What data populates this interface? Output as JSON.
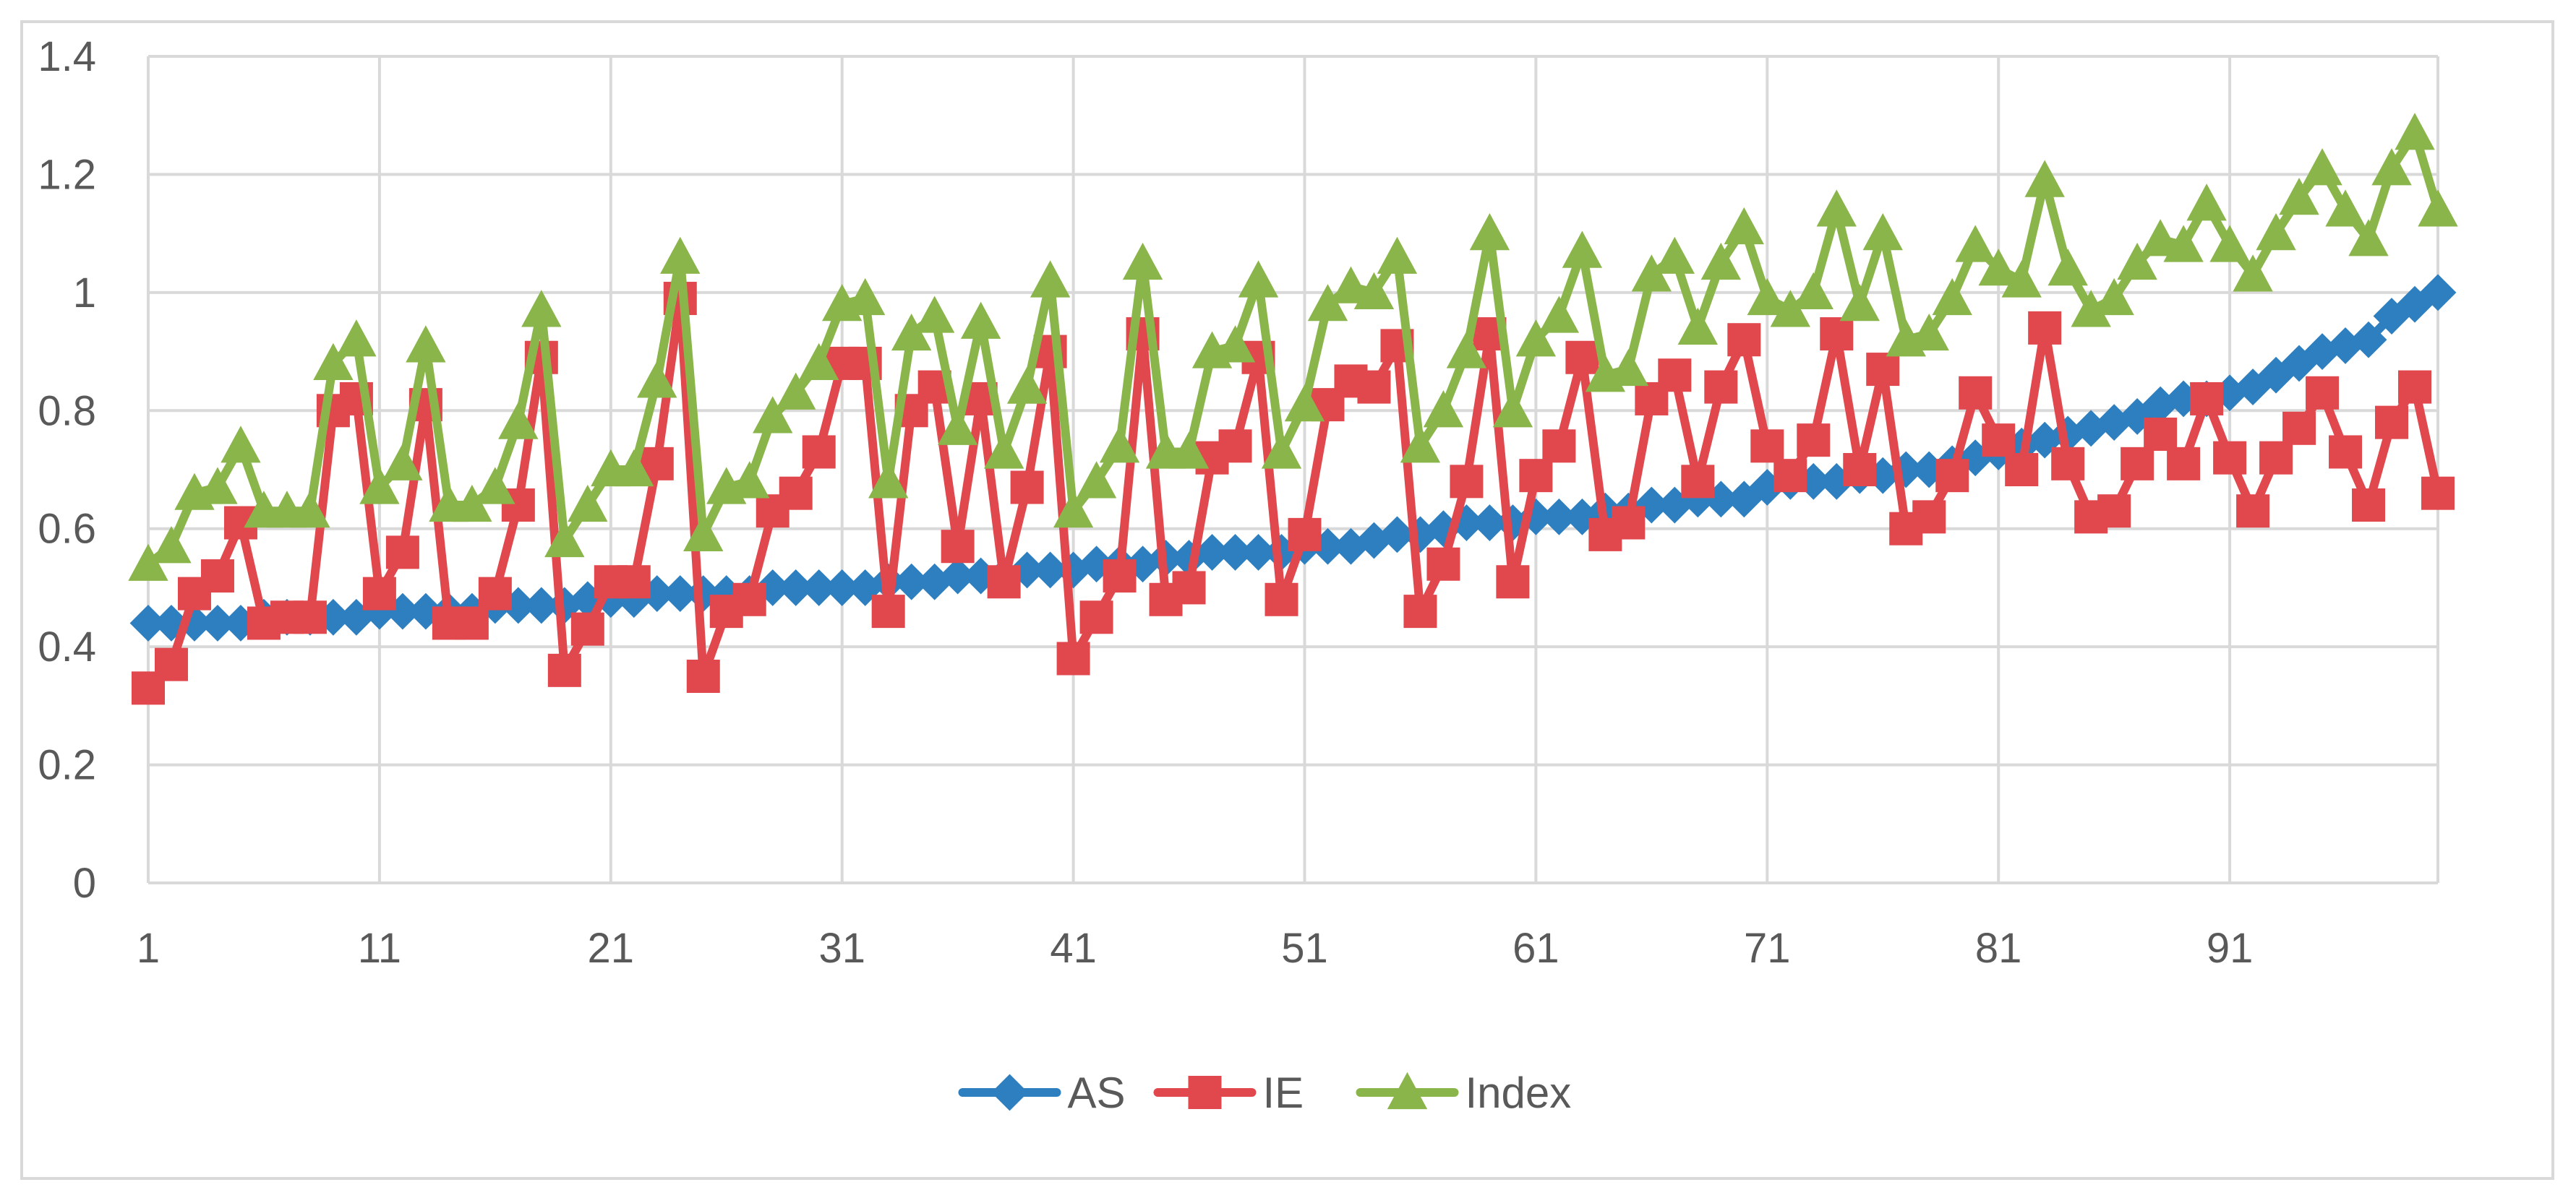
{
  "chart_data": {
    "type": "line",
    "title": "",
    "xlabel": "",
    "ylabel": "",
    "x": [
      1,
      2,
      3,
      4,
      5,
      6,
      7,
      8,
      9,
      10,
      11,
      12,
      13,
      14,
      15,
      16,
      17,
      18,
      19,
      20,
      21,
      22,
      23,
      24,
      25,
      26,
      27,
      28,
      29,
      30,
      31,
      32,
      33,
      34,
      35,
      36,
      37,
      38,
      39,
      40,
      41,
      42,
      43,
      44,
      45,
      46,
      47,
      48,
      49,
      50,
      51,
      52,
      53,
      54,
      55,
      56,
      57,
      58,
      59,
      60,
      61,
      62,
      63,
      64,
      65,
      66,
      67,
      68,
      69,
      70,
      71,
      72,
      73,
      74,
      75,
      76,
      77,
      78,
      79,
      80,
      81,
      82,
      83,
      84,
      85,
      86,
      87,
      88,
      89,
      90,
      91,
      92,
      93,
      94,
      95,
      96,
      97,
      98,
      99,
      100
    ],
    "xtick_labels": [
      "1",
      "11",
      "21",
      "31",
      "41",
      "51",
      "61",
      "71",
      "81",
      "91"
    ],
    "xtick_values": [
      1,
      11,
      21,
      31,
      41,
      51,
      61,
      71,
      81,
      91
    ],
    "ylim": [
      0,
      1.4
    ],
    "ytick_labels": [
      "0",
      "0.2",
      "0.4",
      "0.6",
      "0.8",
      "1",
      "1.2",
      "1.4"
    ],
    "ytick_values": [
      0,
      0.2,
      0.4,
      0.6,
      0.8,
      1,
      1.2,
      1.4
    ],
    "grid": true,
    "legend_position": "bottom",
    "series": [
      {
        "name": "AS",
        "color": "#2e7fbf",
        "marker": "diamond",
        "values": [
          0.44,
          0.44,
          0.44,
          0.44,
          0.44,
          0.45,
          0.45,
          0.45,
          0.45,
          0.45,
          0.46,
          0.46,
          0.46,
          0.46,
          0.46,
          0.47,
          0.47,
          0.47,
          0.47,
          0.48,
          0.48,
          0.48,
          0.49,
          0.49,
          0.49,
          0.49,
          0.49,
          0.5,
          0.5,
          0.5,
          0.5,
          0.5,
          0.51,
          0.51,
          0.51,
          0.52,
          0.52,
          0.52,
          0.53,
          0.53,
          0.53,
          0.54,
          0.54,
          0.54,
          0.55,
          0.55,
          0.56,
          0.56,
          0.56,
          0.56,
          0.57,
          0.57,
          0.57,
          0.58,
          0.59,
          0.59,
          0.6,
          0.61,
          0.61,
          0.61,
          0.62,
          0.62,
          0.62,
          0.63,
          0.63,
          0.64,
          0.64,
          0.65,
          0.65,
          0.65,
          0.67,
          0.68,
          0.68,
          0.68,
          0.69,
          0.69,
          0.7,
          0.7,
          0.71,
          0.72,
          0.73,
          0.74,
          0.75,
          0.76,
          0.77,
          0.78,
          0.79,
          0.81,
          0.82,
          0.82,
          0.83,
          0.84,
          0.86,
          0.88,
          0.9,
          0.91,
          0.92,
          0.96,
          0.98,
          1.0
        ]
      },
      {
        "name": "IE",
        "color": "#e0484e",
        "marker": "square",
        "values": [
          0.33,
          0.37,
          0.49,
          0.52,
          0.61,
          0.44,
          0.45,
          0.45,
          0.8,
          0.82,
          0.49,
          0.56,
          0.81,
          0.44,
          0.44,
          0.49,
          0.64,
          0.89,
          0.36,
          0.43,
          0.51,
          0.51,
          0.71,
          0.99,
          0.35,
          0.46,
          0.48,
          0.63,
          0.66,
          0.73,
          0.88,
          0.88,
          0.46,
          0.8,
          0.84,
          0.57,
          0.82,
          0.51,
          0.67,
          0.9,
          0.38,
          0.45,
          0.52,
          0.93,
          0.48,
          0.5,
          0.72,
          0.74,
          0.89,
          0.48,
          0.59,
          0.81,
          0.85,
          0.84,
          0.91,
          0.46,
          0.54,
          0.68,
          0.93,
          0.51,
          0.69,
          0.74,
          0.89,
          0.59,
          0.61,
          0.82,
          0.86,
          0.68,
          0.84,
          0.92,
          0.74,
          0.69,
          0.75,
          0.93,
          0.7,
          0.87,
          0.6,
          0.62,
          0.69,
          0.83,
          0.75,
          0.7,
          0.94,
          0.71,
          0.62,
          0.63,
          0.71,
          0.76,
          0.71,
          0.82,
          0.72,
          0.63,
          0.72,
          0.77,
          0.83,
          0.73,
          0.64,
          0.78,
          0.84,
          0.66
        ]
      },
      {
        "name": "Index",
        "color": "#8ab54a",
        "marker": "triangle",
        "values": [
          0.54,
          0.57,
          0.66,
          0.67,
          0.74,
          0.63,
          0.63,
          0.63,
          0.88,
          0.92,
          0.67,
          0.71,
          0.91,
          0.64,
          0.64,
          0.67,
          0.78,
          0.97,
          0.58,
          0.64,
          0.7,
          0.7,
          0.85,
          1.06,
          0.59,
          0.67,
          0.68,
          0.79,
          0.83,
          0.88,
          0.98,
          0.99,
          0.68,
          0.93,
          0.96,
          0.77,
          0.95,
          0.73,
          0.84,
          1.02,
          0.63,
          0.68,
          0.74,
          1.05,
          0.73,
          0.73,
          0.9,
          0.91,
          1.02,
          0.73,
          0.81,
          0.98,
          1.01,
          1.0,
          1.06,
          0.74,
          0.8,
          0.9,
          1.1,
          0.8,
          0.92,
          0.96,
          1.07,
          0.86,
          0.87,
          1.03,
          1.06,
          0.94,
          1.05,
          1.11,
          0.99,
          0.97,
          1.0,
          1.14,
          0.98,
          1.1,
          0.92,
          0.93,
          0.99,
          1.08,
          1.04,
          1.02,
          1.19,
          1.04,
          0.97,
          0.99,
          1.05,
          1.09,
          1.08,
          1.15,
          1.08,
          1.03,
          1.1,
          1.16,
          1.21,
          1.14,
          1.09,
          1.21,
          1.27,
          1.14
        ]
      }
    ]
  }
}
